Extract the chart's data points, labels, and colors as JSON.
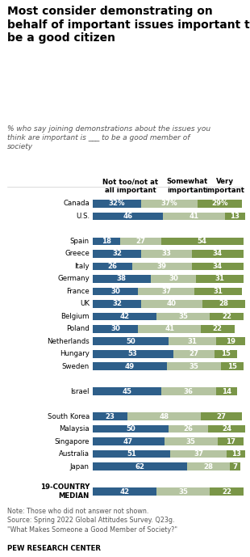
{
  "title": "Most consider demonstrating on\nbehalf of important issues important to\nbe a good citizen",
  "subtitle": "% who say joining demonstrations about the issues you\nthink are important is ___ to be a good member of\nsociety",
  "col_labels": [
    "Not too/not at\nall important",
    "Somewhat\nimportant",
    "Very\nimportant"
  ],
  "note": "Note: Those who did not answer not shown.\nSource: Spring 2022 Global Attitudes Survey. Q23g.\n\"What Makes Someone a Good Member of Society?\"",
  "source_bold": "PEW RESEARCH CENTER",
  "countries": [
    "Canada",
    "U.S.",
    "",
    "Spain",
    "Greece",
    "Italy",
    "Germany",
    "France",
    "UK",
    "Belgium",
    "Poland",
    "Netherlands",
    "Hungary",
    "Sweden",
    "",
    "Israel",
    "",
    "South Korea",
    "Malaysia",
    "Singapore",
    "Australia",
    "Japan",
    "",
    "19-COUNTRY\nMEDIAN"
  ],
  "not_important": [
    32,
    46,
    null,
    18,
    32,
    26,
    38,
    30,
    32,
    42,
    30,
    50,
    53,
    49,
    null,
    45,
    null,
    23,
    50,
    47,
    51,
    62,
    null,
    42
  ],
  "somewhat": [
    37,
    41,
    null,
    27,
    33,
    39,
    30,
    37,
    40,
    35,
    41,
    31,
    27,
    35,
    null,
    36,
    null,
    48,
    26,
    35,
    37,
    28,
    null,
    35
  ],
  "very": [
    29,
    13,
    null,
    54,
    34,
    34,
    31,
    31,
    28,
    22,
    22,
    19,
    15,
    15,
    null,
    14,
    null,
    27,
    24,
    17,
    13,
    7,
    null,
    22
  ],
  "color_not": "#2e5f8a",
  "color_somewhat": "#b5c4a1",
  "color_very": "#7a9648",
  "bar_height": 0.62,
  "figsize": [
    3.1,
    6.89
  ],
  "dpi": 100
}
